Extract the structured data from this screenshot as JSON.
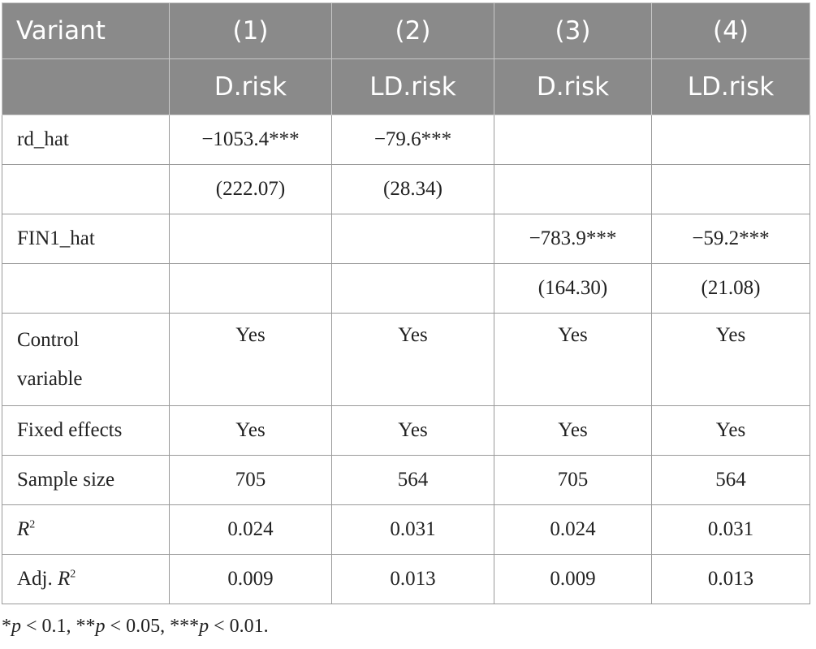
{
  "table": {
    "header": {
      "variant_label": "Variant",
      "columns": [
        {
          "num": "(1)",
          "dep": "D.risk"
        },
        {
          "num": "(2)",
          "dep": "LD.risk"
        },
        {
          "num": "(3)",
          "dep": "D.risk"
        },
        {
          "num": "(4)",
          "dep": "LD.risk"
        }
      ]
    },
    "rows": {
      "rd_hat": {
        "label": "rd_hat",
        "coef": [
          "−1053.4***",
          "−79.6***",
          "",
          ""
        ],
        "se": [
          "(222.07)",
          "(28.34)",
          "",
          ""
        ]
      },
      "fin1_hat": {
        "label": "FIN1_hat",
        "coef": [
          "",
          "",
          "−783.9***",
          "−59.2***"
        ],
        "se": [
          "",
          "",
          "(164.30)",
          "(21.08)"
        ]
      },
      "control": {
        "label_line1": "Control",
        "label_line2": "variable",
        "values": [
          "Yes",
          "Yes",
          "Yes",
          "Yes"
        ]
      },
      "fixed_effects": {
        "label": "Fixed effects",
        "values": [
          "Yes",
          "Yes",
          "Yes",
          "Yes"
        ]
      },
      "sample_size": {
        "label": "Sample size",
        "values": [
          "705",
          "564",
          "705",
          "564"
        ]
      },
      "r2": {
        "label_var": "R",
        "label_sup": "2",
        "values": [
          "0.024",
          "0.031",
          "0.024",
          "0.031"
        ]
      },
      "adj_r2": {
        "label_prefix": "Adj. ",
        "label_var": "R",
        "label_sup": "2",
        "values": [
          "0.009",
          "0.013",
          "0.009",
          "0.013"
        ]
      }
    }
  },
  "footnote": {
    "s1": "*",
    "p1": "p",
    "t1": " < 0.1, **",
    "p2": "p",
    "t2": " < 0.05, ***",
    "p3": "p",
    "t3": " < 0.01."
  },
  "colors": {
    "header_bg": "#8a8a8a",
    "header_text": "#ffffff",
    "grid": "#9a9a9a"
  }
}
